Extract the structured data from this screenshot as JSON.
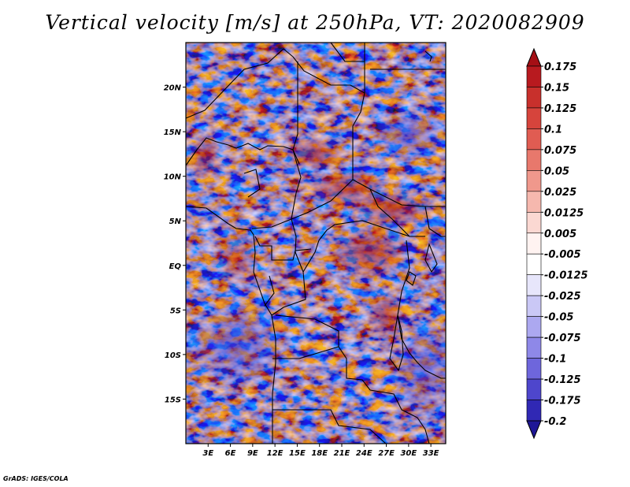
{
  "title": "Vertical velocity [m/s] at 250hPa, VT: 2020082909",
  "credit": "GrADS: IGES/COLA",
  "map": {
    "variable": "Vertical velocity",
    "units": "m/s",
    "level": "250hPa",
    "valid_time": "2020082909",
    "lon_range": [
      0,
      35
    ],
    "lat_range": [
      -20,
      25
    ],
    "lat_labels": [
      "20N",
      "15N",
      "10N",
      "5N",
      "EQ",
      "5S",
      "10S",
      "15S"
    ],
    "lon_labels": [
      "3E",
      "6E",
      "9E",
      "12E",
      "15E",
      "18E",
      "21E",
      "24E",
      "27E",
      "30E",
      "33E"
    ]
  },
  "colorbar": {
    "labels": [
      "0.175",
      "0.15",
      "0.125",
      "0.1",
      "0.075",
      "0.05",
      "0.025",
      "0.0125",
      "0.005",
      "-0.005",
      "-0.0125",
      "-0.025",
      "-0.05",
      "-0.075",
      "-0.1",
      "-0.125",
      "-0.175",
      "-0.2"
    ],
    "colors": [
      "#a50f15",
      "#b81a1f",
      "#c8302c",
      "#d6443c",
      "#e05c52",
      "#e8786c",
      "#f0988c",
      "#f6b8ae",
      "#fbd8d2",
      "#fff3f1",
      "#ffffff",
      "#e7e6fb",
      "#cac8f6",
      "#aca8f0",
      "#8e88e8",
      "#6e66dc",
      "#4e46cc",
      "#3028b4",
      "#1e1696"
    ]
  }
}
